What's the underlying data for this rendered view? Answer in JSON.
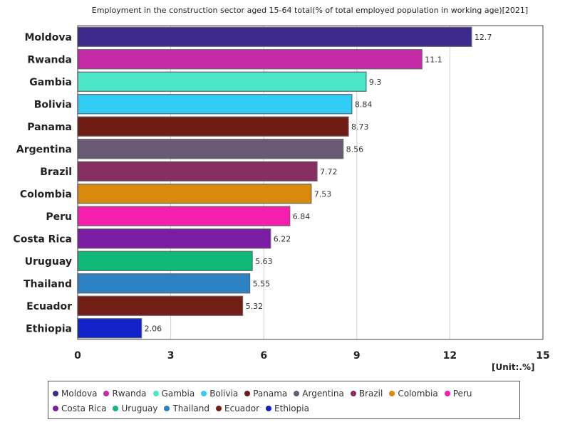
{
  "chart_data": {
    "type": "bar",
    "orientation": "horizontal",
    "title": "Employment in the construction sector aged 15-64 total(% of total employed population in working age)[2021]",
    "unit_label": "[Unit:.%]",
    "xlim": [
      0,
      15
    ],
    "ticks": [
      "0",
      "3",
      "6",
      "9",
      "12",
      "15"
    ],
    "grid": true,
    "legend_position": "bottom",
    "categories": [
      "Moldova",
      "Rwanda",
      "Gambia",
      "Bolivia",
      "Panama",
      "Argentina",
      "Brazil",
      "Colombia",
      "Peru",
      "Costa Rica",
      "Uruguay",
      "Thailand",
      "Ecuador",
      "Ethiopia"
    ],
    "values": [
      12.7,
      11.1,
      9.3,
      8.84,
      8.73,
      8.56,
      7.72,
      7.53,
      6.84,
      6.22,
      5.63,
      5.55,
      5.32,
      2.06
    ],
    "value_labels": [
      "12.7",
      "11.1",
      "9.3",
      "8.84",
      "8.73",
      "8.56",
      "7.72",
      "7.53",
      "6.84",
      "6.22",
      "5.63",
      "5.55",
      "5.32",
      "2.06"
    ],
    "colors": [
      "#3d2a8a",
      "#c42aa6",
      "#4ee6c8",
      "#33ccf5",
      "#6e1c14",
      "#6b5a76",
      "#862e62",
      "#d98a0e",
      "#f51fae",
      "#7a1da3",
      "#10b978",
      "#2c82c3",
      "#731d17",
      "#1122c8"
    ]
  }
}
